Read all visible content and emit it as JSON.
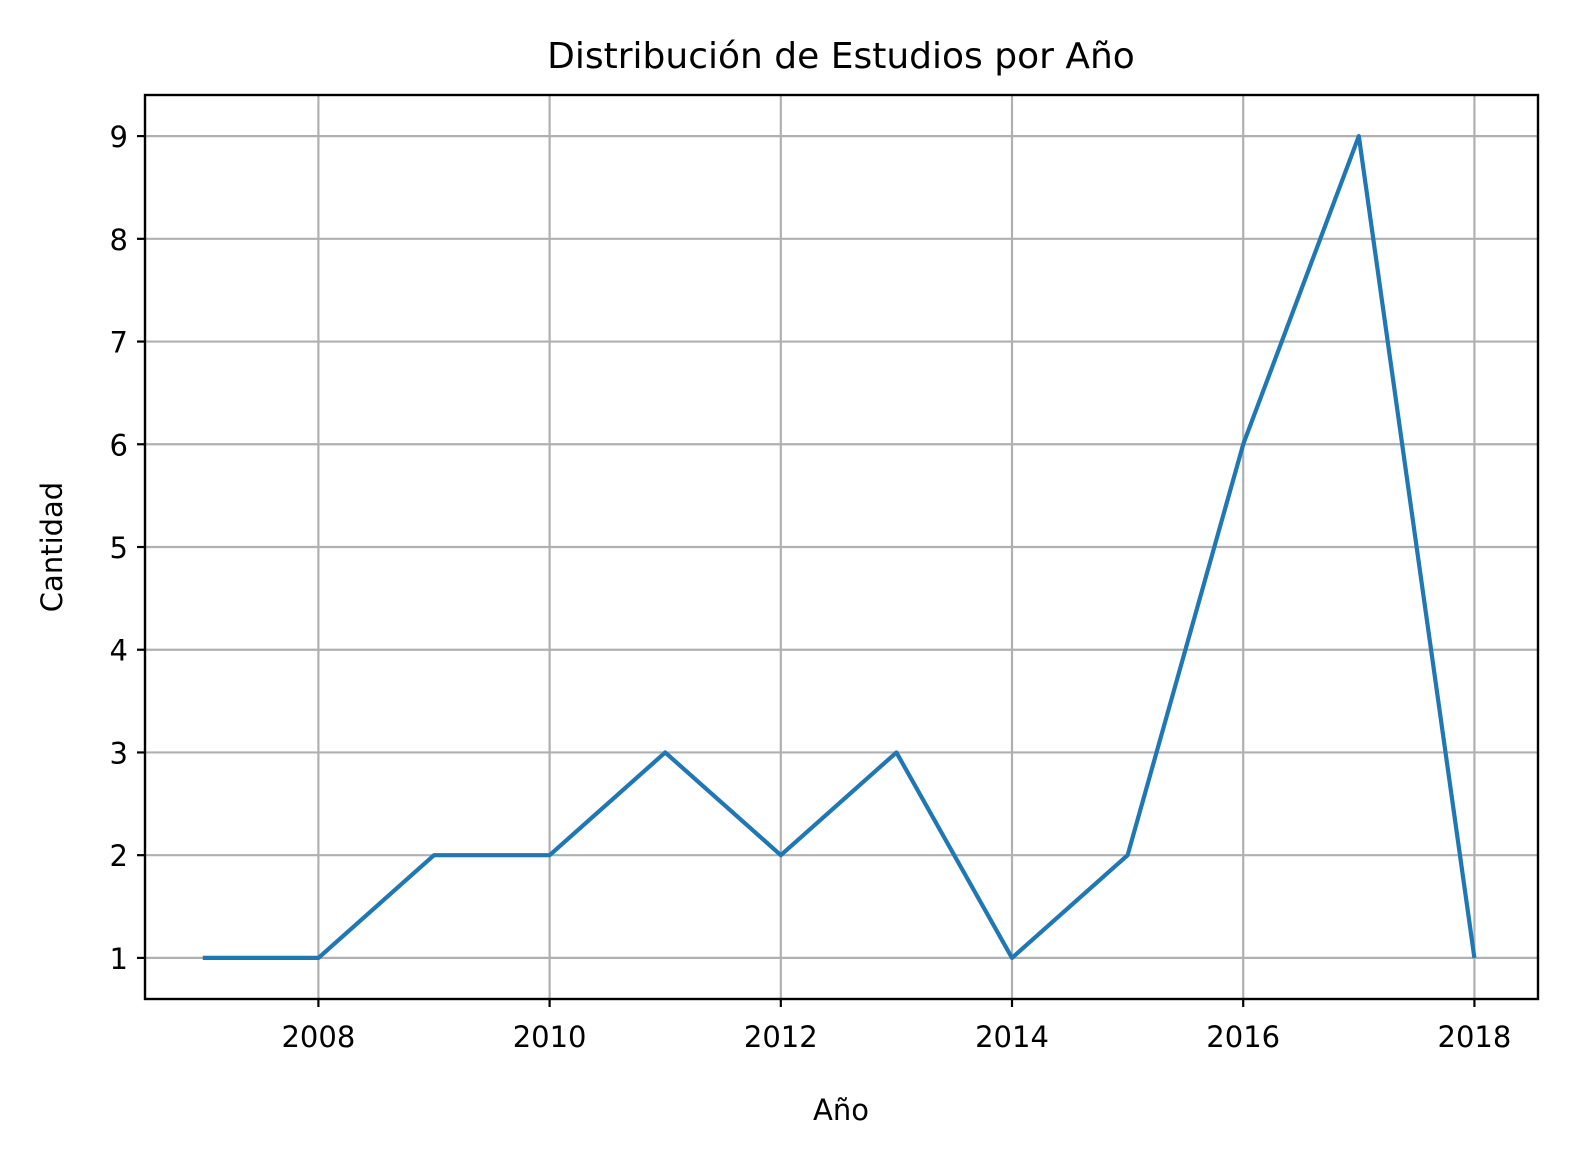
{
  "chart_data": {
    "type": "line",
    "title": "Distribución de Estudios por Año",
    "xlabel": "Año",
    "ylabel": "Cantidad",
    "x": [
      2007,
      2008,
      2009,
      2010,
      2011,
      2012,
      2013,
      2014,
      2015,
      2016,
      2017,
      2018
    ],
    "series": [
      {
        "values": [
          1,
          1,
          2,
          2,
          3,
          2,
          3,
          1,
          2,
          6,
          9,
          1
        ]
      }
    ],
    "xlim": [
      2006.5,
      2018.55
    ],
    "ylim": [
      0.6,
      9.4
    ],
    "xticks": [
      2008,
      2010,
      2012,
      2014,
      2016,
      2018
    ],
    "yticks": [
      1,
      2,
      3,
      4,
      5,
      6,
      7,
      8,
      9
    ],
    "grid": true,
    "colors": {
      "line": "#1f77b4",
      "grid": "#b0b0b0",
      "axes": "#000000"
    }
  }
}
